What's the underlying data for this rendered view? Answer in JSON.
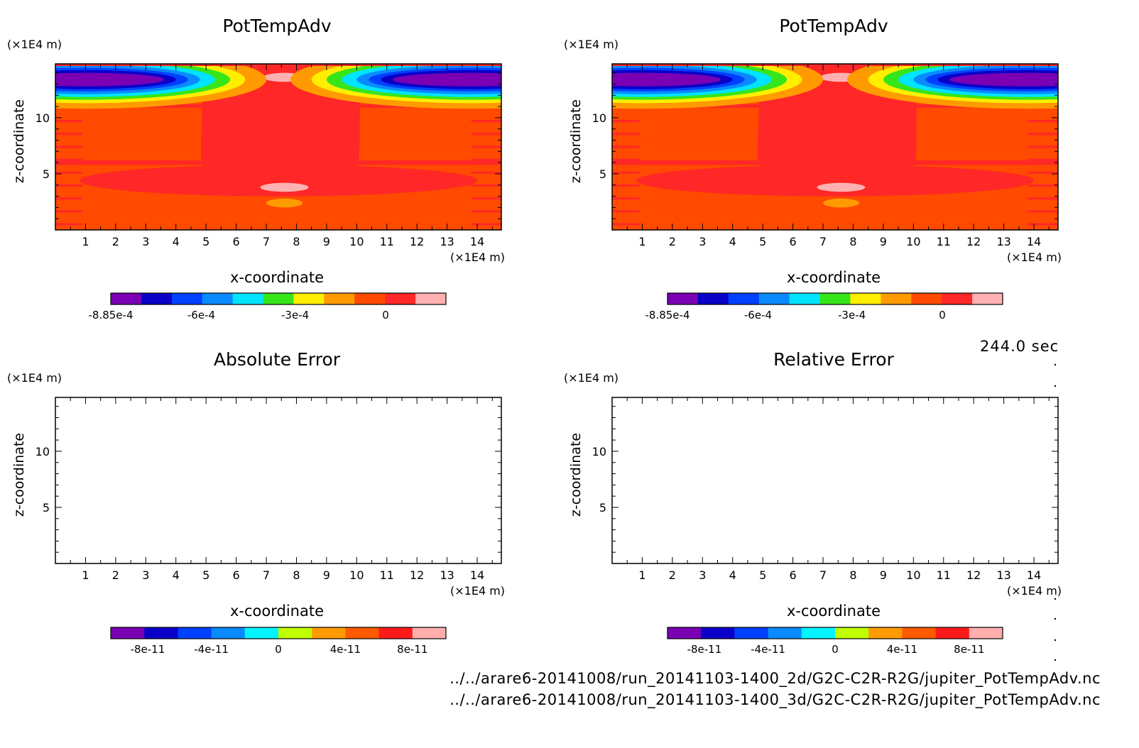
{
  "time_label": "244.0 sec",
  "files": [
    "../../arare6-20141008/run_20141103-1400_2d/G2C-C2R-R2G/jupiter_PotTempAdv.nc",
    "../../arare6-20141008/run_20141103-1400_3d/G2C-C2R-R2G/jupiter_PotTempAdv.nc"
  ],
  "colors": {
    "field": [
      "#7b00b4",
      "#0a00c8",
      "#0040ff",
      "#0a8aff",
      "#00e4ff",
      "#37e51b",
      "#ffee00",
      "#ff9b00",
      "#ff4a00",
      "#ff2727",
      "#ffb1b1"
    ],
    "error": [
      "#7b00b4",
      "#0a00c8",
      "#0040ff",
      "#0a8aff",
      "#00f5ff",
      "#bfff00",
      "#ff9b00",
      "#ff5a00",
      "#ff1a1a",
      "#ffadad"
    ]
  },
  "chart_data": [
    {
      "type": "heatmap",
      "title": "PotTempAdv",
      "xlabel": "x-coordinate",
      "ylabel": "z-coordinate",
      "x_unit": "(×1E4 m)",
      "y_unit": "(×1E4 m)",
      "xlim": [
        0,
        14.8
      ],
      "ylim": [
        0,
        14.8
      ],
      "x_ticks": [
        "1",
        "2",
        "3",
        "4",
        "5",
        "6",
        "7",
        "8",
        "9",
        "10",
        "11",
        "12",
        "13",
        "14"
      ],
      "y_ticks": [
        "5",
        "10"
      ],
      "colorbar_labels": [
        "-8.85e-4",
        "-6e-4",
        "-3e-4",
        "0"
      ],
      "field": "filled"
    },
    {
      "type": "heatmap",
      "title": "PotTempAdv",
      "xlabel": "x-coordinate",
      "ylabel": "z-coordinate",
      "x_unit": "(×1E4 m)",
      "y_unit": "(×1E4 m)",
      "xlim": [
        0,
        14.8
      ],
      "ylim": [
        0,
        14.8
      ],
      "x_ticks": [
        "1",
        "2",
        "3",
        "4",
        "5",
        "6",
        "7",
        "8",
        "9",
        "10",
        "11",
        "12",
        "13",
        "14"
      ],
      "y_ticks": [
        "5",
        "10"
      ],
      "colorbar_labels": [
        "-8.85e-4",
        "-6e-4",
        "-3e-4",
        "0"
      ],
      "field": "filled"
    },
    {
      "type": "heatmap",
      "title": "Absolute Error",
      "xlabel": "x-coordinate",
      "ylabel": "z-coordinate",
      "x_unit": "(×1E4 m)",
      "y_unit": "(×1E4 m)",
      "xlim": [
        0,
        14.8
      ],
      "ylim": [
        0,
        14.8
      ],
      "x_ticks": [
        "1",
        "2",
        "3",
        "4",
        "5",
        "6",
        "7",
        "8",
        "9",
        "10",
        "11",
        "12",
        "13",
        "14"
      ],
      "y_ticks": [
        "5",
        "10"
      ],
      "colorbar_labels": [
        "-8e-11",
        "-4e-11",
        "0",
        "4e-11",
        "8e-11"
      ],
      "field": "empty"
    },
    {
      "type": "heatmap",
      "title": "Relative Error",
      "xlabel": "x-coordinate",
      "ylabel": "z-coordinate",
      "x_unit": "(×1E4 m)",
      "y_unit": "(×1E4 m)",
      "xlim": [
        0,
        14.8
      ],
      "ylim": [
        0,
        14.8
      ],
      "x_ticks": [
        "1",
        "2",
        "3",
        "4",
        "5",
        "6",
        "7",
        "8",
        "9",
        "10",
        "11",
        "12",
        "13",
        "14"
      ],
      "y_ticks": [
        "5",
        "10"
      ],
      "colorbar_labels": [
        "-8e-11",
        "-4e-11",
        "0",
        "4e-11",
        "8e-11"
      ],
      "field": "empty"
    }
  ]
}
